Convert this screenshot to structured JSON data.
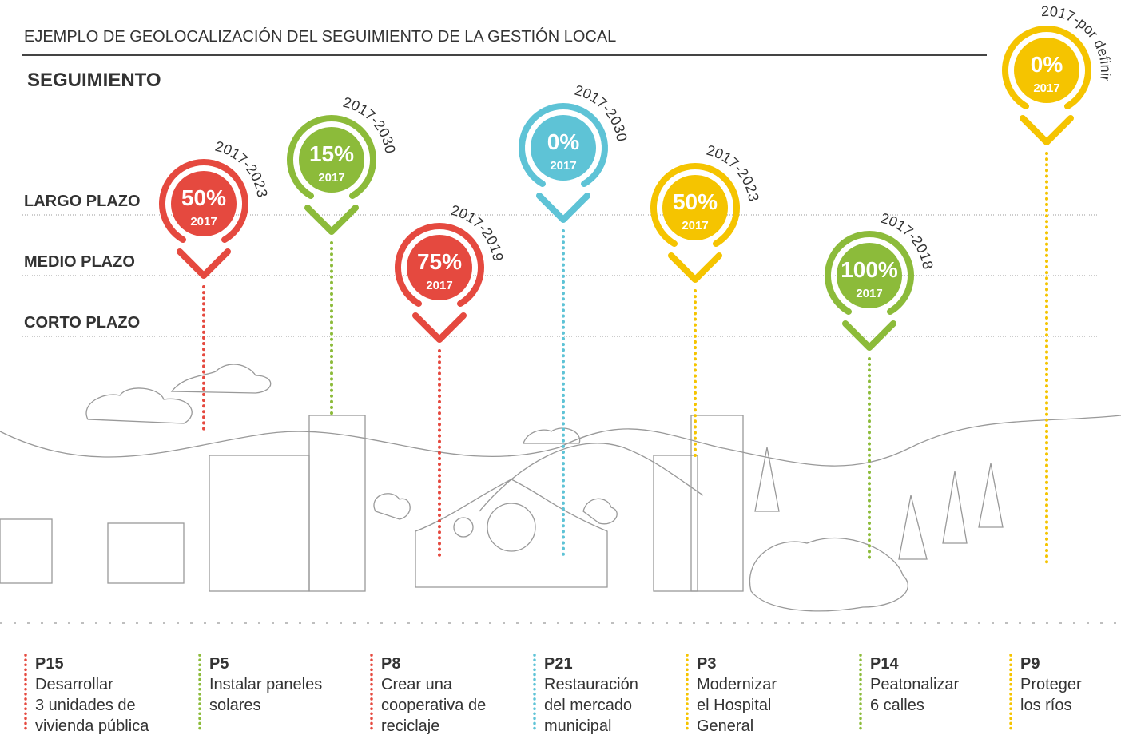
{
  "header": {
    "title": "EJEMPLO DE GEOLOCALIZACIÓN DEL SEGUIMIENTO DE LA GESTIÓN LOCAL",
    "section": "SEGUIMIENTO"
  },
  "levels": [
    "LARGO PLAZO",
    "MEDIO PLAZO",
    "CORTO PLAZO"
  ],
  "pins": [
    {
      "percent": "50%",
      "year": "2017",
      "period": "2017-2023",
      "color": "#e5493f"
    },
    {
      "percent": "15%",
      "year": "2017",
      "period": "2017-2030",
      "color": "#8cbb3a"
    },
    {
      "percent": "75%",
      "year": "2017",
      "period": "2017-2019",
      "color": "#e5493f"
    },
    {
      "percent": "0%",
      "year": "2017",
      "period": "2017-2030",
      "color": "#5ec3d6"
    },
    {
      "percent": "50%",
      "year": "2017",
      "period": "2017-2023",
      "color": "#f5c400"
    },
    {
      "percent": "100%",
      "year": "2017",
      "period": "2017-2018",
      "color": "#8cbb3a"
    },
    {
      "percent": "0%",
      "year": "2017",
      "period": "2017-por definir",
      "color": "#f5c400"
    }
  ],
  "projects": [
    {
      "code": "P15",
      "lines": [
        "Desarrollar",
        "3 unidades de",
        "vivienda pública"
      ]
    },
    {
      "code": "P5",
      "lines": [
        "Instalar paneles",
        "solares"
      ]
    },
    {
      "code": "P8",
      "lines": [
        "Crear una",
        "cooperativa de",
        "reciclaje"
      ]
    },
    {
      "code": "P21",
      "lines": [
        "Restauración",
        "del mercado",
        "municipal"
      ]
    },
    {
      "code": "P3",
      "lines": [
        "Modernizar",
        "el Hospital",
        "General"
      ]
    },
    {
      "code": "P14",
      "lines": [
        "Peatonalizar",
        "6 calles"
      ]
    },
    {
      "code": "P9",
      "lines": [
        "Proteger",
        "los ríos"
      ]
    }
  ]
}
